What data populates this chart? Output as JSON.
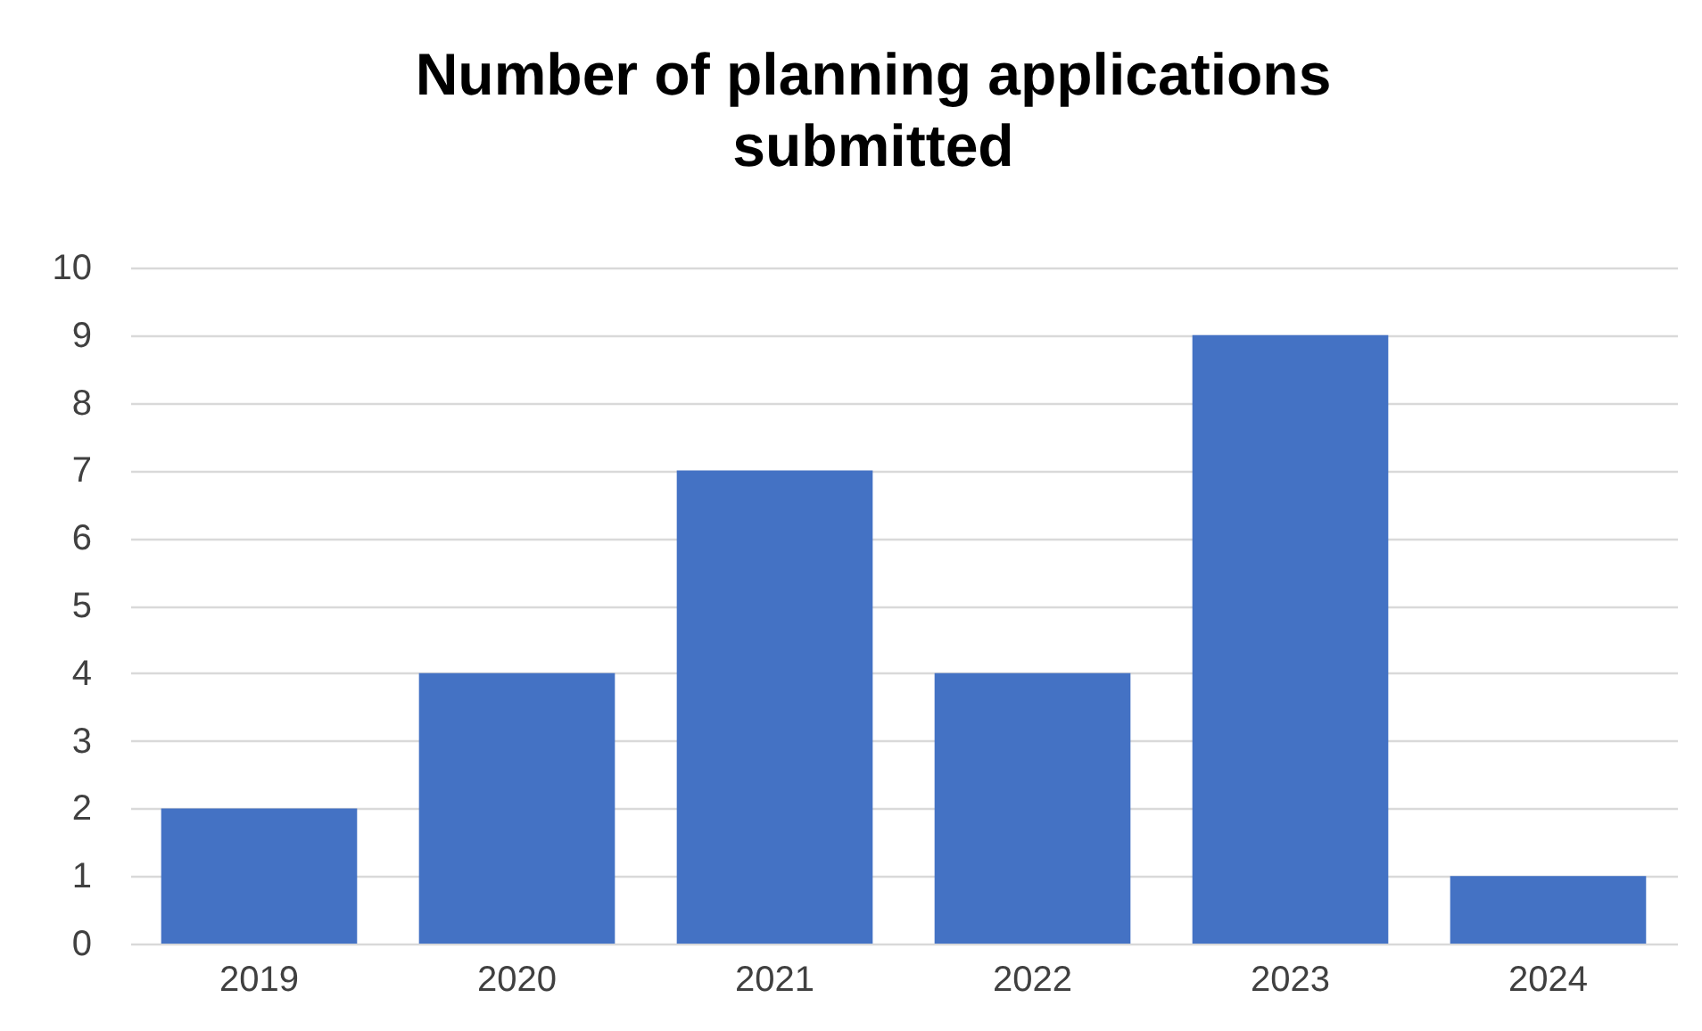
{
  "chart_data": {
    "type": "bar",
    "title": "Number of planning applications submitted",
    "categories": [
      "2019",
      "2020",
      "2021",
      "2022",
      "2023",
      "2024"
    ],
    "values": [
      2,
      4,
      7,
      4,
      9,
      1
    ],
    "color": "#4472c4",
    "ylim": [
      0,
      10
    ],
    "yticks": [
      0,
      1,
      2,
      3,
      4,
      5,
      6,
      7,
      8,
      9,
      10
    ],
    "grid": "y"
  }
}
